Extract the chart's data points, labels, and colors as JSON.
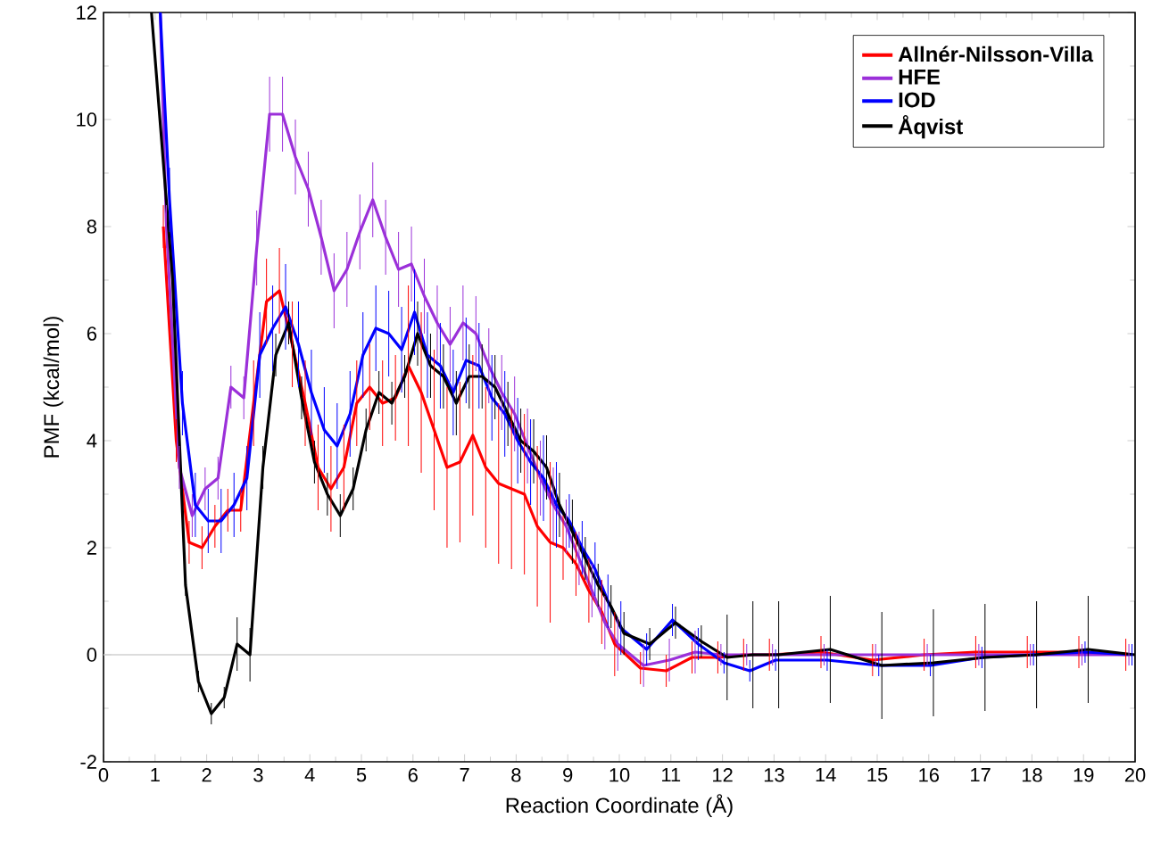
{
  "chart_data": {
    "type": "line",
    "xlabel": "Reaction Coordinate (Å)",
    "ylabel": "PMF (kcal/mol)",
    "xlim": [
      0,
      20
    ],
    "ylim": [
      -2,
      12
    ],
    "xticks": [
      0,
      1,
      2,
      3,
      4,
      5,
      6,
      7,
      8,
      9,
      10,
      11,
      12,
      13,
      14,
      15,
      16,
      17,
      18,
      19,
      20
    ],
    "yticks": [
      -2,
      0,
      2,
      4,
      6,
      8,
      10,
      12
    ],
    "legend": "top right",
    "marker": "none",
    "line_style": "solid",
    "grid": false,
    "ref_lines": [
      {
        "axis": "y",
        "value": 0,
        "color": "#d0d0d0"
      }
    ],
    "series": [
      {
        "name": "Allnér-Nilsson-Villa",
        "color": "#ff0000",
        "x": [
          1.16,
          1.41,
          1.66,
          1.91,
          2.16,
          2.41,
          2.66,
          2.91,
          3.16,
          3.41,
          3.66,
          3.91,
          4.16,
          4.41,
          4.66,
          4.91,
          5.16,
          5.41,
          5.66,
          5.91,
          6.16,
          6.41,
          6.66,
          6.91,
          7.16,
          7.41,
          7.66,
          7.91,
          8.16,
          8.41,
          8.66,
          8.91,
          9.16,
          9.41,
          9.66,
          9.91,
          10.41,
          10.91,
          11.41,
          11.91,
          12.41,
          12.91,
          13.91,
          14.91,
          15.91,
          16.91,
          17.91,
          18.91,
          19.82
        ],
        "values": [
          8.0,
          4.0,
          2.1,
          2.0,
          2.4,
          2.7,
          2.7,
          4.7,
          6.6,
          6.8,
          5.8,
          4.7,
          3.5,
          3.1,
          3.5,
          4.7,
          5.0,
          4.7,
          4.8,
          5.4,
          4.9,
          4.2,
          3.5,
          3.6,
          4.1,
          3.5,
          3.2,
          3.1,
          3.0,
          2.4,
          2.1,
          2.0,
          1.7,
          1.2,
          0.8,
          0.2,
          -0.25,
          -0.3,
          -0.05,
          -0.05,
          0,
          0,
          0.05,
          -0.1,
          0,
          0.05,
          0.05,
          0.05,
          0
        ],
        "errors": [
          0.4,
          0.4,
          0.4,
          0.4,
          0.4,
          0.4,
          0.4,
          0.8,
          0.8,
          0.8,
          0.8,
          0.8,
          0.8,
          0.8,
          0.8,
          0.8,
          0.8,
          0.8,
          0.8,
          1.5,
          1.5,
          1.5,
          1.5,
          1.5,
          1.5,
          1.5,
          1.5,
          1.5,
          1.5,
          1.5,
          1.5,
          0.6,
          0.6,
          0.6,
          0.6,
          0.6,
          0.3,
          0.3,
          0.3,
          0.3,
          0.3,
          0.3,
          0.3,
          0.3,
          0.3,
          0.3,
          0.3,
          0.3,
          0.3
        ]
      },
      {
        "name": "HFE",
        "color": "#9b30d9",
        "x": [
          1.1,
          1.22,
          1.47,
          1.72,
          1.97,
          2.22,
          2.47,
          2.72,
          2.97,
          3.22,
          3.47,
          3.72,
          3.97,
          4.22,
          4.47,
          4.72,
          4.97,
          5.22,
          5.47,
          5.72,
          5.97,
          6.22,
          6.47,
          6.72,
          6.97,
          7.22,
          7.47,
          7.72,
          7.97,
          8.22,
          8.47,
          8.72,
          8.97,
          9.22,
          9.47,
          9.72,
          9.97,
          10.47,
          10.97,
          11.47,
          11.97,
          12.47,
          12.97,
          13.97,
          14.97,
          15.97,
          16.97,
          17.97,
          18.97,
          19.88
        ],
        "values": [
          12,
          8.0,
          3.5,
          2.6,
          3.1,
          3.3,
          5.0,
          4.8,
          7.6,
          10.1,
          10.1,
          9.3,
          8.7,
          7.8,
          6.8,
          7.2,
          7.9,
          8.5,
          7.8,
          7.2,
          7.3,
          6.7,
          6.2,
          5.8,
          6.2,
          6.0,
          5.4,
          4.9,
          4.5,
          3.9,
          3.3,
          2.8,
          2.4,
          1.8,
          1.2,
          0.6,
          0.2,
          -0.2,
          -0.1,
          0.05,
          0,
          0,
          0,
          0,
          0,
          0,
          0,
          0,
          0,
          0
        ],
        "errors": [
          null,
          0.4,
          0.4,
          0.4,
          0.4,
          0.4,
          0.4,
          0.4,
          0.7,
          0.7,
          0.7,
          0.7,
          0.7,
          0.7,
          0.7,
          0.7,
          0.7,
          0.7,
          0.7,
          0.7,
          0.7,
          0.7,
          0.7,
          0.7,
          0.7,
          0.7,
          0.7,
          0.7,
          0.7,
          0.7,
          0.7,
          0.7,
          0.5,
          0.5,
          0.5,
          0.5,
          0.5,
          0.4,
          0.4,
          0.4,
          0.2,
          0.2,
          0.2,
          0.2,
          0.2,
          0.2,
          0.2,
          0.2,
          0.2,
          0.2
        ]
      },
      {
        "name": "IOD",
        "color": "#0000ff",
        "x": [
          1.1,
          1.28,
          1.53,
          1.78,
          2.03,
          2.28,
          2.53,
          2.78,
          3.03,
          3.28,
          3.53,
          3.78,
          4.03,
          4.28,
          4.53,
          4.78,
          5.03,
          5.28,
          5.53,
          5.78,
          6.03,
          6.28,
          6.53,
          6.78,
          7.03,
          7.28,
          7.53,
          7.78,
          8.03,
          8.28,
          8.53,
          8.78,
          9.03,
          9.28,
          9.53,
          9.78,
          10.03,
          10.53,
          11.03,
          11.53,
          12.03,
          12.53,
          13.03,
          14.03,
          15.03,
          16.03,
          17.03,
          18.03,
          19.03,
          19.94
        ],
        "values": [
          12,
          8.5,
          4.7,
          2.8,
          2.5,
          2.5,
          2.8,
          3.3,
          5.6,
          6.1,
          6.5,
          5.8,
          4.9,
          4.2,
          3.9,
          4.5,
          5.6,
          6.1,
          6.0,
          5.7,
          6.4,
          5.6,
          5.4,
          4.9,
          5.5,
          5.4,
          4.8,
          4.5,
          4.0,
          3.6,
          3.3,
          2.8,
          2.5,
          2.0,
          1.6,
          1.0,
          0.5,
          0.1,
          0.65,
          0.2,
          -0.15,
          -0.3,
          -0.1,
          -0.1,
          -0.2,
          -0.2,
          -0.05,
          0,
          0.05,
          0
        ],
        "errors": [
          null,
          0.6,
          0.6,
          0.6,
          0.6,
          0.6,
          0.6,
          0.6,
          0.8,
          0.8,
          0.8,
          0.8,
          0.8,
          0.8,
          0.8,
          0.8,
          0.8,
          0.8,
          0.8,
          0.8,
          0.8,
          0.8,
          0.8,
          0.8,
          0.8,
          0.8,
          0.8,
          0.8,
          0.8,
          0.8,
          0.8,
          0.8,
          0.5,
          0.5,
          0.5,
          0.5,
          0.5,
          0.3,
          0.3,
          0.3,
          0.2,
          0.2,
          0.2,
          0.2,
          0.2,
          0.2,
          0.2,
          0.2,
          0.2,
          0.2
        ]
      },
      {
        "name": "Åqvist",
        "color": "#000000",
        "x": [
          0.93,
          1.34,
          1.59,
          1.84,
          2.09,
          2.34,
          2.59,
          2.84,
          3.09,
          3.34,
          3.59,
          3.84,
          4.09,
          4.34,
          4.59,
          4.84,
          5.09,
          5.34,
          5.59,
          5.84,
          6.09,
          6.34,
          6.59,
          6.84,
          7.09,
          7.34,
          7.59,
          7.84,
          8.09,
          8.34,
          8.59,
          8.84,
          9.09,
          9.34,
          9.59,
          9.84,
          10.09,
          10.59,
          11.09,
          11.59,
          12.09,
          12.59,
          13.09,
          14.09,
          15.09,
          16.09,
          17.09,
          18.09,
          19.09,
          20
        ],
        "values": [
          12,
          7.0,
          1.3,
          -0.5,
          -1.1,
          -0.8,
          0.2,
          0.0,
          3.5,
          5.6,
          6.2,
          4.8,
          3.6,
          3.0,
          2.6,
          3.1,
          4.2,
          4.9,
          4.7,
          5.2,
          6.0,
          5.4,
          5.2,
          4.7,
          5.2,
          5.2,
          5.0,
          4.5,
          4.0,
          3.8,
          3.5,
          2.8,
          2.3,
          1.8,
          1.3,
          0.9,
          0.4,
          0.2,
          0.6,
          0.25,
          -0.05,
          0,
          0,
          0.1,
          -0.2,
          -0.15,
          -0.05,
          0,
          0.1,
          0
        ],
        "errors": [
          null,
          0.2,
          0.2,
          0.2,
          0.2,
          0.2,
          0.5,
          0.5,
          0.4,
          0.4,
          0.4,
          0.4,
          0.4,
          0.4,
          0.4,
          0.4,
          0.4,
          0.4,
          0.4,
          0.4,
          0.6,
          0.6,
          0.6,
          0.6,
          0.6,
          0.6,
          0.6,
          0.6,
          0.6,
          0.6,
          0.6,
          0.6,
          0.6,
          0.4,
          0.4,
          0.4,
          0.4,
          0.3,
          0.3,
          0.3,
          0.8,
          1.0,
          1.0,
          1.0,
          1.0,
          1.0,
          1.0,
          1.0,
          1.0,
          1.0
        ]
      }
    ]
  }
}
